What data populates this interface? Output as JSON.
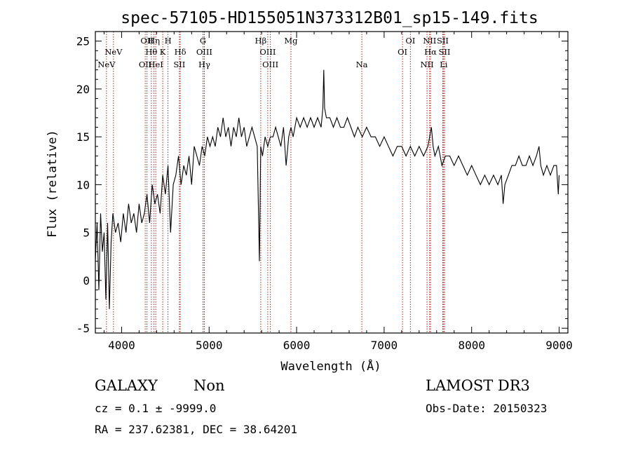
{
  "chart_data": {
    "type": "line",
    "title": "spec-57105-HD155051N373312B01_sp15-149.fits",
    "xlabel": "Wavelength (Å)",
    "ylabel": "Flux (relative)",
    "xlim": [
      3700,
      9100
    ],
    "ylim": [
      -5.5,
      26
    ],
    "xticks": [
      4000,
      5000,
      6000,
      7000,
      8000,
      9000
    ],
    "yticks": [
      -5,
      0,
      5,
      10,
      15,
      20,
      25
    ],
    "series": [
      {
        "name": "spectrum",
        "x": [
          3700,
          3720,
          3740,
          3760,
          3780,
          3800,
          3820,
          3840,
          3860,
          3880,
          3900,
          3930,
          3960,
          3990,
          4020,
          4050,
          4080,
          4110,
          4140,
          4170,
          4200,
          4230,
          4260,
          4290,
          4320,
          4350,
          4380,
          4410,
          4440,
          4470,
          4500,
          4530,
          4560,
          4590,
          4620,
          4650,
          4680,
          4710,
          4740,
          4770,
          4800,
          4830,
          4860,
          4890,
          4920,
          4950,
          4980,
          5010,
          5040,
          5070,
          5100,
          5130,
          5160,
          5190,
          5220,
          5250,
          5280,
          5310,
          5340,
          5370,
          5400,
          5430,
          5460,
          5490,
          5520,
          5550,
          5575,
          5590,
          5610,
          5640,
          5670,
          5700,
          5730,
          5760,
          5790,
          5820,
          5850,
          5880,
          5910,
          5935,
          5960,
          6000,
          6040,
          6080,
          6120,
          6160,
          6200,
          6240,
          6280,
          6300,
          6310,
          6320,
          6340,
          6380,
          6420,
          6460,
          6500,
          6540,
          6580,
          6620,
          6660,
          6700,
          6750,
          6800,
          6850,
          6900,
          6950,
          7000,
          7050,
          7100,
          7150,
          7200,
          7250,
          7300,
          7350,
          7400,
          7450,
          7500,
          7540,
          7560,
          7580,
          7620,
          7660,
          7700,
          7750,
          7800,
          7850,
          7900,
          7950,
          8000,
          8050,
          8100,
          8150,
          8200,
          8250,
          8300,
          8340,
          8360,
          8380,
          8420,
          8460,
          8500,
          8540,
          8580,
          8620,
          8660,
          8700,
          8740,
          8770,
          8790,
          8820,
          8860,
          8900,
          8940,
          8970,
          8990,
          9000
        ],
        "y": [
          2,
          6,
          -1,
          7,
          3,
          5,
          -2,
          6,
          -3,
          4,
          7,
          5,
          6,
          4,
          7,
          5,
          8,
          6,
          7,
          5,
          8,
          6,
          7,
          9,
          6,
          10,
          8,
          9,
          7,
          11,
          9,
          12,
          5,
          10,
          11,
          13,
          10,
          12,
          11,
          13,
          10,
          14,
          13,
          12,
          14,
          13,
          15,
          14,
          15,
          14,
          16,
          15,
          17,
          15,
          16,
          14,
          16,
          15,
          17,
          15,
          16,
          14,
          15,
          16,
          15,
          14,
          2,
          14,
          13,
          15,
          14,
          15,
          15,
          16,
          15,
          14,
          16,
          12,
          15,
          16,
          15,
          17,
          16,
          17,
          16,
          17,
          16,
          17,
          16,
          18,
          22,
          18,
          17,
          17,
          16,
          17,
          16,
          16,
          17,
          16,
          15,
          16,
          15,
          16,
          15,
          15,
          14,
          15,
          14,
          13,
          14,
          14,
          13,
          14,
          13,
          14,
          13,
          14,
          16,
          14,
          13,
          14,
          12,
          13,
          13,
          12,
          13,
          12,
          11,
          12,
          11,
          10,
          11,
          10,
          11,
          10,
          11,
          8,
          10,
          11,
          12,
          12,
          13,
          12,
          12,
          13,
          12,
          13,
          14,
          12,
          11,
          12,
          11,
          12,
          12,
          9,
          11
        ]
      }
    ],
    "reference_lines": [
      {
        "label": "NeV",
        "wave": 3827,
        "row": 3
      },
      {
        "label": "NeV",
        "wave": 3907,
        "row": 2
      },
      {
        "label": "OII",
        "wave": 4270,
        "row": 3
      },
      {
        "label": "OII",
        "wave": 4290,
        "row": 1
      },
      {
        "label": "Hθ",
        "wave": 4340,
        "row": 2
      },
      {
        "label": "Hη",
        "wave": 4370,
        "row": 1
      },
      {
        "label": "HeI",
        "wave": 4390,
        "row": 3
      },
      {
        "label": "K",
        "wave": 4470,
        "row": 2
      },
      {
        "label": "H",
        "wave": 4530,
        "row": 1
      },
      {
        "label": "SII",
        "wave": 4660,
        "row": 3
      },
      {
        "label": "Hδ",
        "wave": 4670,
        "row": 2
      },
      {
        "label": "G",
        "wave": 4930,
        "row": 1
      },
      {
        "label": "OIII",
        "wave": 4945,
        "row": 2
      },
      {
        "label": "Hγ",
        "wave": 4945,
        "row": 3
      },
      {
        "label": "Hβ",
        "wave": 5590,
        "row": 1
      },
      {
        "label": "OIII",
        "wave": 5670,
        "row": 2
      },
      {
        "label": "OIII",
        "wave": 5700,
        "row": 3
      },
      {
        "label": "Mg",
        "wave": 5935,
        "row": 1
      },
      {
        "label": "Na",
        "wave": 6745,
        "row": 3
      },
      {
        "label": "OI",
        "wave": 7210,
        "row": 2
      },
      {
        "label": "OI",
        "wave": 7300,
        "row": 1
      },
      {
        "label": "NII",
        "wave": 7490,
        "row": 3
      },
      {
        "label": "NII",
        "wave": 7520,
        "row": 1
      },
      {
        "label": "Hα",
        "wave": 7530,
        "row": 2
      },
      {
        "label": "SII",
        "wave": 7670,
        "row": 1
      },
      {
        "label": "SII",
        "wave": 7690,
        "row": 2
      },
      {
        "label": "Li",
        "wave": 7680,
        "row": 3
      }
    ]
  },
  "info": {
    "class": "GALAXY",
    "subclass": "Non",
    "survey": "LAMOST DR3",
    "cz": "cz = 0.1 ± -9999.0",
    "obs_date": "Obs-Date: 20150323",
    "coords": "RA = 237.62381, DEC =  38.64201"
  },
  "colors": {
    "spectrum": "#000000",
    "reference_line": "#b22222",
    "frame": "#000000"
  }
}
